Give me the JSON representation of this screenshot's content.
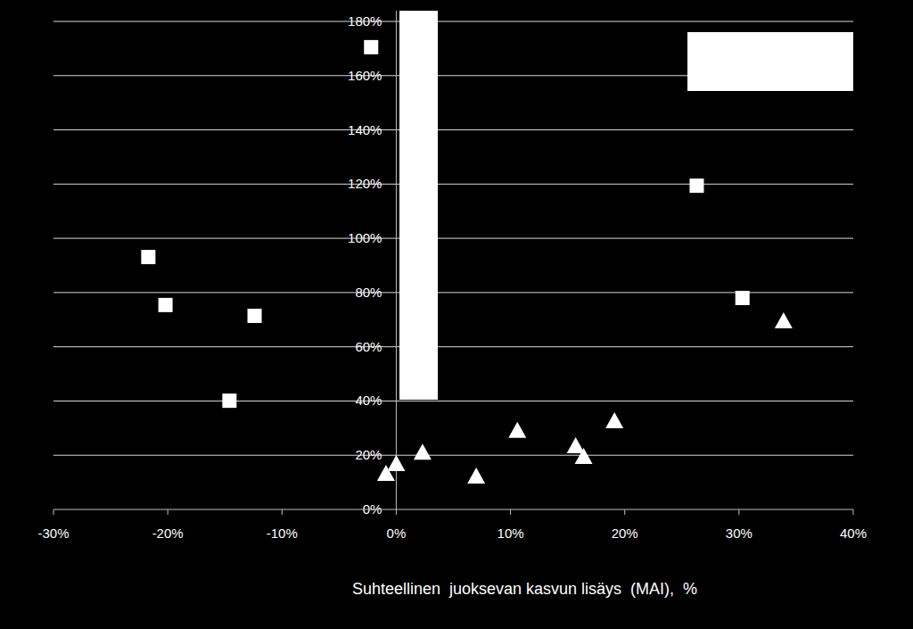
{
  "chart_data": {
    "type": "scatter",
    "x_label": "Suhteellinen  juoksevan kasvun lisäys  (MAI),  %",
    "xlim": [
      -30,
      40
    ],
    "xticks": [
      {
        "value": -30,
        "label": "-30%"
      },
      {
        "value": -20,
        "label": "-20%"
      },
      {
        "value": -10,
        "label": "-10%"
      },
      {
        "value": 0,
        "label": "0%"
      },
      {
        "value": 10,
        "label": "10%"
      },
      {
        "value": 20,
        "label": "20%"
      },
      {
        "value": 30,
        "label": "30%"
      },
      {
        "value": 40,
        "label": "40%"
      }
    ],
    "ylim": [
      0,
      180
    ],
    "yticks": [
      {
        "value": 0,
        "label": "0%"
      },
      {
        "value": 20,
        "label": "20%"
      },
      {
        "value": 40,
        "label": "40%"
      },
      {
        "value": 60,
        "label": "60%"
      },
      {
        "value": 80,
        "label": "80%"
      },
      {
        "value": 100,
        "label": "100%"
      },
      {
        "value": 120,
        "label": "120%"
      },
      {
        "value": 140,
        "label": "140%"
      },
      {
        "value": 160,
        "label": "160%"
      },
      {
        "value": 180,
        "label": "180%"
      }
    ],
    "grid": true,
    "series": [
      {
        "color": "#ffffff",
        "marker": "square",
        "x": [
          -2.2,
          -21.7,
          -20.2,
          -12.4,
          -14.6,
          26.3,
          30.3
        ],
        "values": [
          170.5,
          93.1,
          75.4,
          71.4,
          40.1,
          119.4,
          78.0
        ]
      },
      {
        "color": "#ffffff",
        "marker": "triangle",
        "x": [
          -0.9,
          0.0,
          2.3,
          7.0,
          10.6,
          15.7,
          16.4,
          19.1,
          33.9
        ],
        "values": [
          13.2,
          16.8,
          21.0,
          12.2,
          29.0,
          23.4,
          19.4,
          32.6,
          69.4
        ]
      }
    ]
  }
}
